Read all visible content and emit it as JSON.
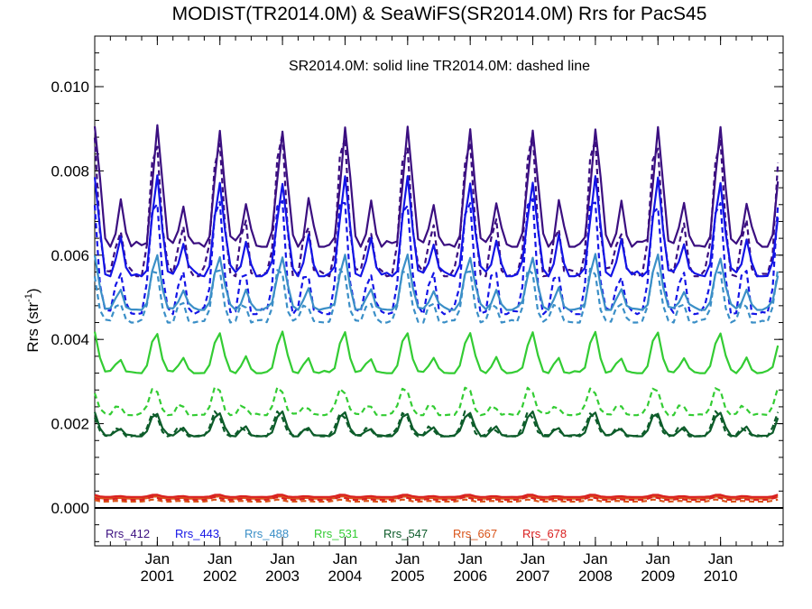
{
  "chart_data": {
    "type": "line",
    "title": "MODIST(TR2014.0M) & SeaWiFS(SR2014.0M)  Rrs for PacS45",
    "annotation": "SR2014.0M: solid line   TR2014.0M: dashed line",
    "ylabel": "Rrs (str",
    "ylabel_sup": "-1",
    "ylabel_close": ")",
    "ylim": [
      -0.0009,
      0.0112
    ],
    "yticks": [
      "0.000",
      "0.002",
      "0.004",
      "0.006",
      "0.008",
      "0.010"
    ],
    "xlim": [
      2000.0,
      2011.0
    ],
    "xticks": [
      {
        "top": "Jan",
        "bottom": "2001",
        "x": 2001.0
      },
      {
        "top": "Jan",
        "bottom": "2002",
        "x": 2002.0
      },
      {
        "top": "Jan",
        "bottom": "2003",
        "x": 2003.0
      },
      {
        "top": "Jan",
        "bottom": "2004",
        "x": 2004.0
      },
      {
        "top": "Jan",
        "bottom": "2005",
        "x": 2005.0
      },
      {
        "top": "Jan",
        "bottom": "2006",
        "x": 2006.0
      },
      {
        "top": "Jan",
        "bottom": "2007",
        "x": 2007.0
      },
      {
        "top": "Jan",
        "bottom": "2008",
        "x": 2008.0
      },
      {
        "top": "Jan",
        "bottom": "2009",
        "x": 2009.0
      },
      {
        "top": "Jan",
        "bottom": "2010",
        "x": 2010.0
      }
    ],
    "series": [
      {
        "name": "Rrs_412",
        "color": "#3b0f80",
        "solid": {
          "peak": 0.009,
          "trough": 0.0062
        },
        "dashed": {
          "peak": 0.009,
          "trough": 0.0055
        }
      },
      {
        "name": "Rrs_443",
        "color": "#1414e6",
        "solid": {
          "peak": 0.0078,
          "trough": 0.0055
        },
        "dashed": {
          "peak": 0.0076,
          "trough": 0.0046
        }
      },
      {
        "name": "Rrs_488",
        "color": "#3b8fc7",
        "solid": {
          "peak": 0.006,
          "trough": 0.0047
        },
        "dashed": {
          "peak": 0.0058,
          "trough": 0.0044
        }
      },
      {
        "name": "Rrs_531",
        "color": "#33cc33",
        "solid": {
          "peak": 0.0042,
          "trough": 0.0032
        },
        "dashed": {
          "peak": 0.0029,
          "trough": 0.0022
        }
      },
      {
        "name": "Rrs_547",
        "color": "#0d5c2a",
        "solid": {
          "peak": 0.0023,
          "trough": 0.0017
        },
        "dashed": {
          "peak": 0.0023,
          "trough": 0.0017
        }
      },
      {
        "name": "Rrs_667",
        "color": "#d9541a",
        "solid": {
          "peak": 0.00028,
          "trough": 0.00022
        },
        "dashed": {
          "peak": 0.0002,
          "trough": 0.00015
        }
      },
      {
        "name": "Rrs_678",
        "color": "#d92020",
        "solid": {
          "peak": 0.00032,
          "trough": 0.00026
        },
        "dashed": {
          "peak": 0.00026,
          "trough": 0.00019
        }
      }
    ],
    "zero_line": true,
    "grid": false
  }
}
